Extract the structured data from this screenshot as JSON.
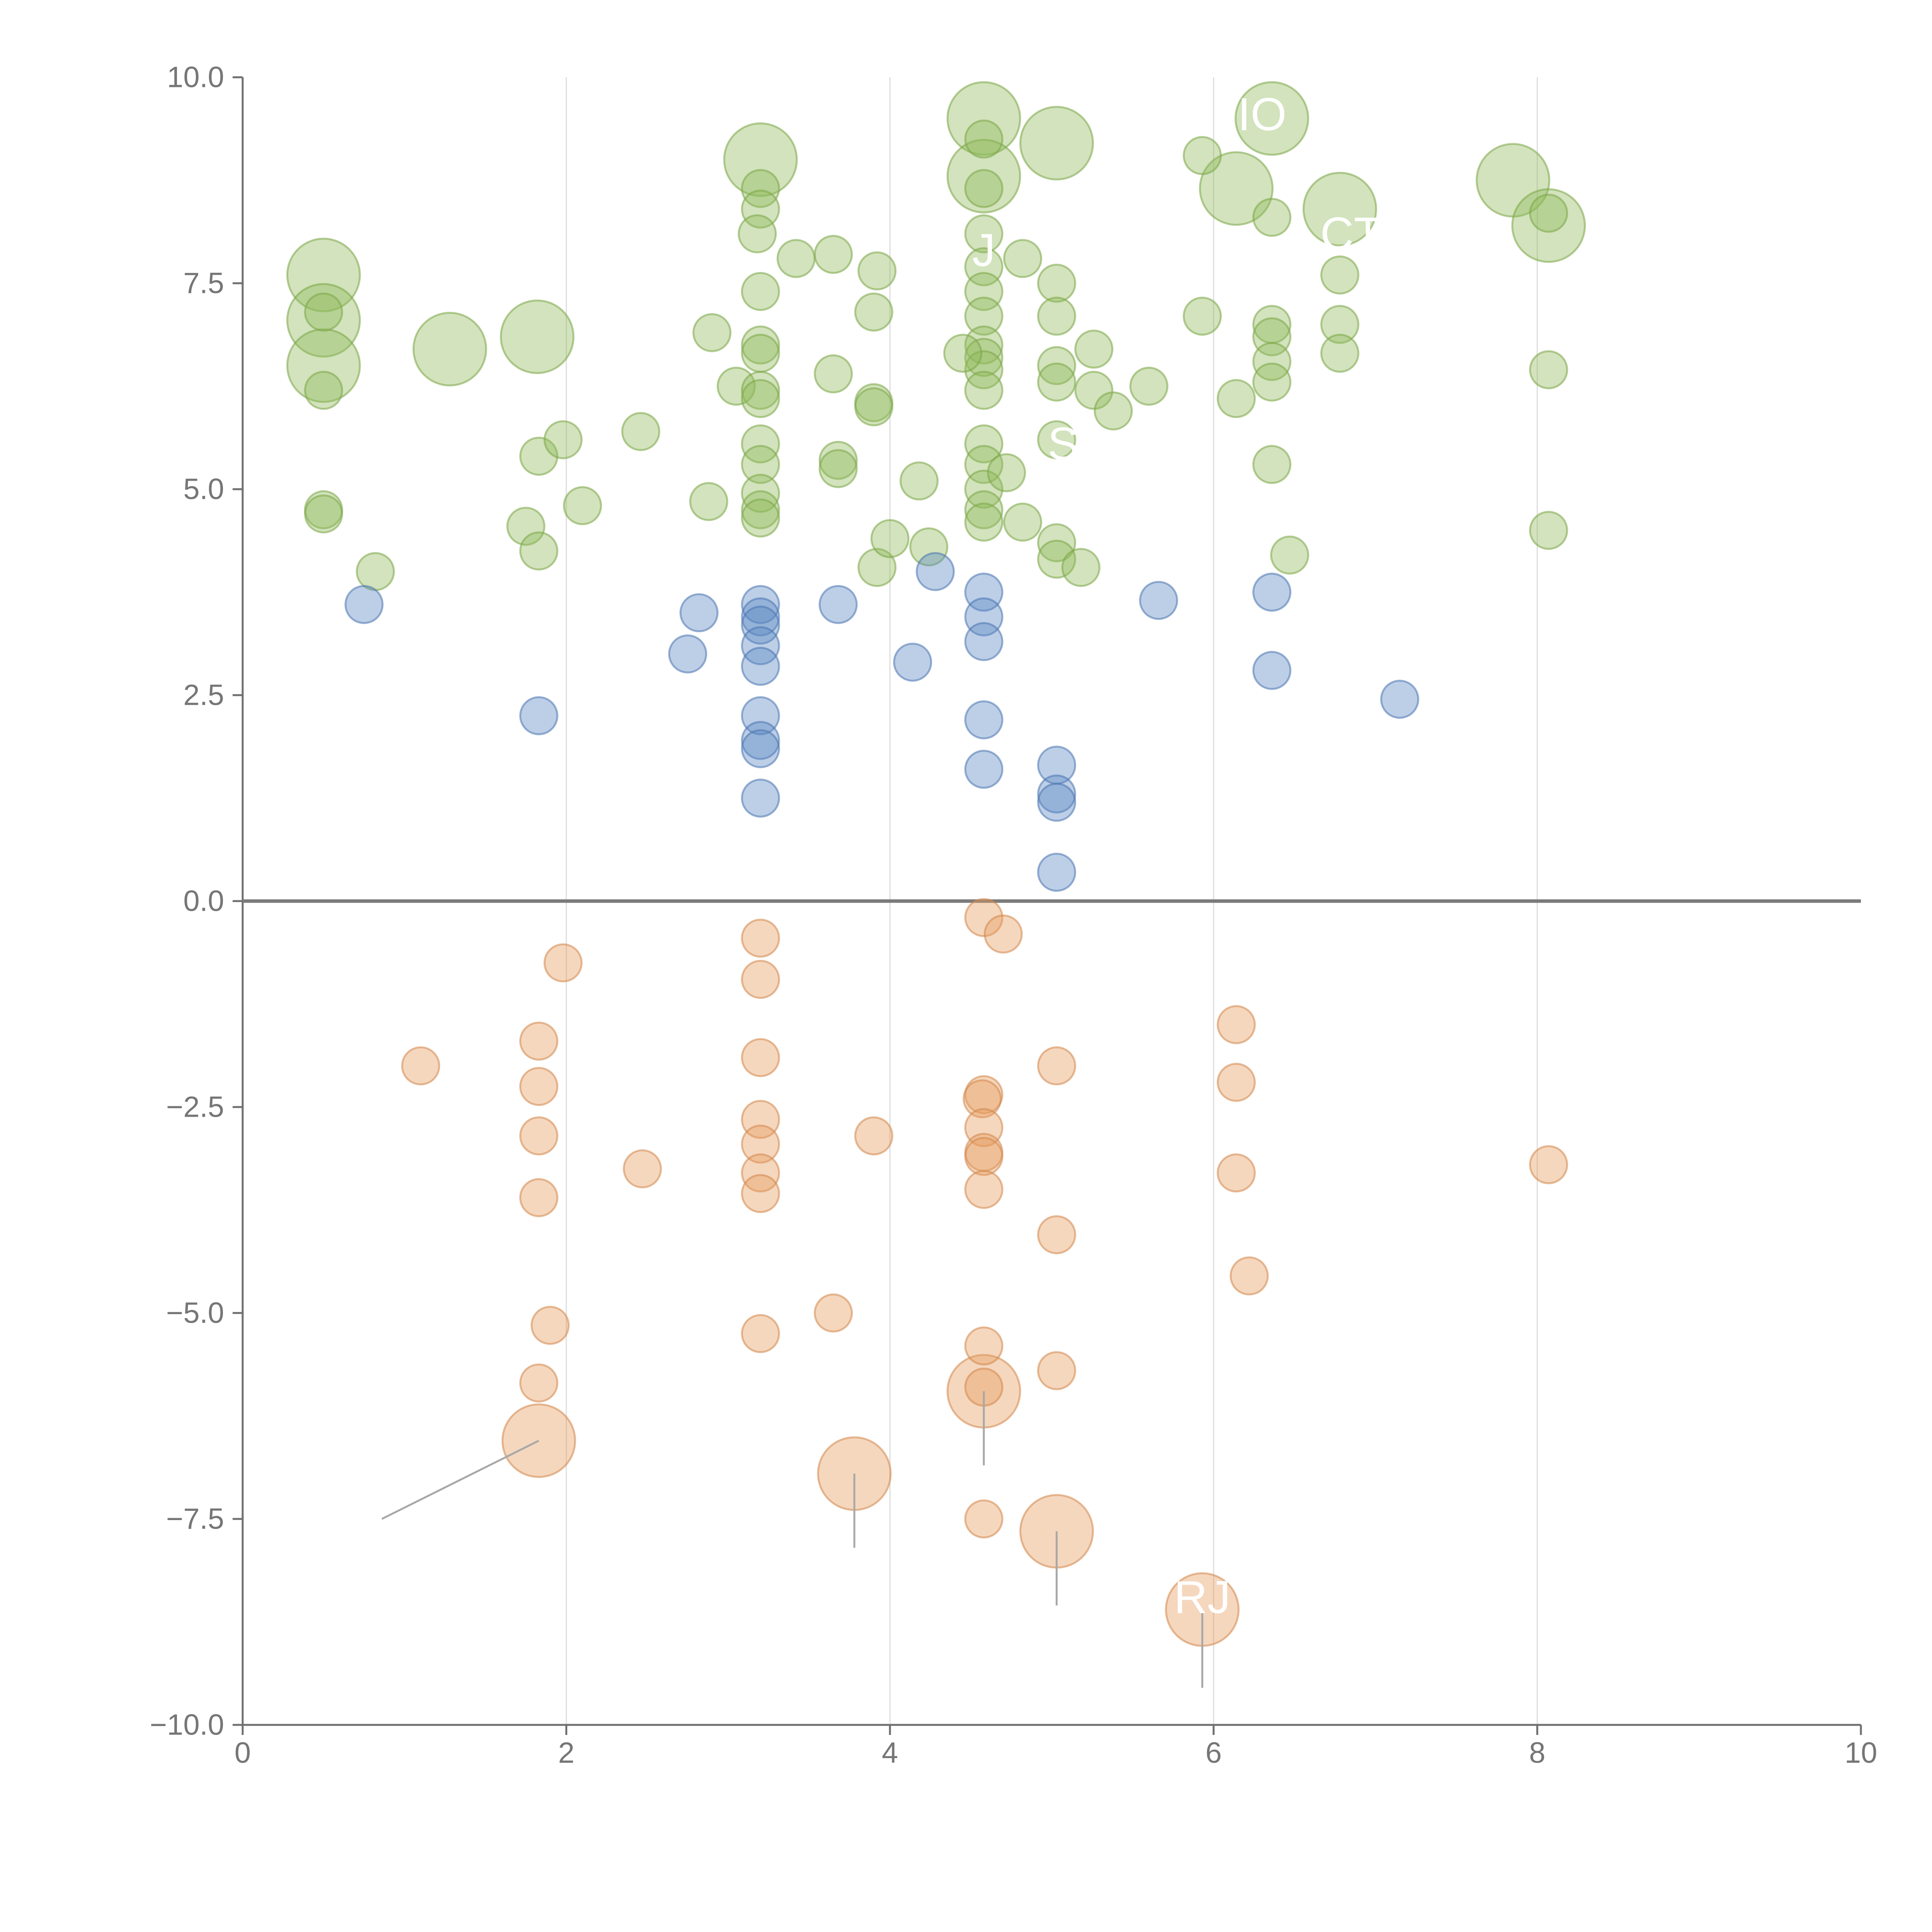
{
  "colors": {
    "positive": "#8fba5a",
    "positive_stroke": "#7aa646",
    "mid": "#5b87c4",
    "mid_stroke": "#4b74b0",
    "negative": "#e59a5c",
    "negative_stroke": "#d2864a",
    "axis": "#6f6f6f",
    "zero_line": "#7a7a7a",
    "grid": "#dddddd",
    "tick_text": "#767676",
    "label_text": "#ffffff",
    "leader": "#a8a8a8"
  },
  "chart_data": {
    "type": "scatter",
    "title": "",
    "xlabel": "",
    "ylabel": "",
    "xlim": [
      0,
      10
    ],
    "ylim": [
      -10,
      10
    ],
    "x_ticks": [
      0,
      2,
      4,
      6,
      8,
      10
    ],
    "x_tick_labels": [
      "0",
      "2",
      "4",
      "6",
      "8",
      "10"
    ],
    "y_ticks": [
      10,
      7.5,
      5,
      2.5,
      0,
      -2.5,
      -5,
      -7.5,
      -10
    ],
    "y_tick_labels": [
      "10.0",
      "7.5",
      "5.0",
      "2.5",
      "0.0",
      "−2.5",
      "−5.0",
      "−7.5",
      "−10.0"
    ],
    "vertical_grid_at": [
      2,
      4,
      6,
      8
    ],
    "zero_line": true,
    "series": [
      {
        "name": "positive",
        "color_key": "positive",
        "points": [
          {
            "x": 0.5,
            "y": 7.6,
            "s": 2
          },
          {
            "x": 0.5,
            "y": 7.05,
            "s": 2
          },
          {
            "x": 0.5,
            "y": 6.5,
            "s": 2
          },
          {
            "x": 0.5,
            "y": 7.15,
            "s": 1
          },
          {
            "x": 0.5,
            "y": 6.2,
            "s": 1
          },
          {
            "x": 0.5,
            "y": 4.75,
            "s": 1
          },
          {
            "x": 0.5,
            "y": 4.7,
            "s": 1
          },
          {
            "x": 0.82,
            "y": 4.0,
            "s": 1
          },
          {
            "x": 1.28,
            "y": 6.7,
            "s": 2
          },
          {
            "x": 1.82,
            "y": 6.85,
            "s": 2
          },
          {
            "x": 1.75,
            "y": 4.55,
            "s": 1
          },
          {
            "x": 1.83,
            "y": 5.4,
            "s": 1
          },
          {
            "x": 1.83,
            "y": 4.25,
            "s": 1
          },
          {
            "x": 1.98,
            "y": 5.6,
            "s": 1
          },
          {
            "x": 2.1,
            "y": 4.8,
            "s": 1
          },
          {
            "x": 2.46,
            "y": 5.7,
            "s": 1
          },
          {
            "x": 2.88,
            "y": 4.85,
            "s": 1
          },
          {
            "x": 2.9,
            "y": 6.9,
            "s": 1
          },
          {
            "x": 3.05,
            "y": 6.25,
            "s": 1
          },
          {
            "x": 3.2,
            "y": 9.0,
            "s": 2
          },
          {
            "x": 3.2,
            "y": 8.65,
            "s": 1
          },
          {
            "x": 3.2,
            "y": 8.4,
            "s": 1
          },
          {
            "x": 3.18,
            "y": 8.1,
            "s": 1
          },
          {
            "x": 3.2,
            "y": 7.4,
            "s": 1
          },
          {
            "x": 3.2,
            "y": 6.75,
            "s": 1
          },
          {
            "x": 3.2,
            "y": 6.65,
            "s": 1
          },
          {
            "x": 3.2,
            "y": 6.2,
            "s": 1
          },
          {
            "x": 3.2,
            "y": 6.1,
            "s": 1
          },
          {
            "x": 3.2,
            "y": 5.55,
            "s": 1
          },
          {
            "x": 3.2,
            "y": 5.3,
            "s": 1
          },
          {
            "x": 3.2,
            "y": 4.95,
            "s": 1
          },
          {
            "x": 3.2,
            "y": 4.75,
            "s": 1
          },
          {
            "x": 3.2,
            "y": 4.65,
            "s": 1
          },
          {
            "x": 3.42,
            "y": 7.8,
            "s": 1
          },
          {
            "x": 3.65,
            "y": 7.85,
            "s": 1
          },
          {
            "x": 3.65,
            "y": 6.4,
            "s": 1
          },
          {
            "x": 3.68,
            "y": 5.35,
            "s": 1
          },
          {
            "x": 3.68,
            "y": 5.25,
            "s": 1
          },
          {
            "x": 3.9,
            "y": 7.15,
            "s": 1
          },
          {
            "x": 3.9,
            "y": 6.05,
            "s": 1
          },
          {
            "x": 3.9,
            "y": 6.0,
            "s": 1
          },
          {
            "x": 3.92,
            "y": 4.05,
            "s": 1
          },
          {
            "x": 3.92,
            "y": 7.65,
            "s": 1
          },
          {
            "x": 4.0,
            "y": 4.4,
            "s": 1
          },
          {
            "x": 4.18,
            "y": 5.1,
            "s": 1
          },
          {
            "x": 4.24,
            "y": 4.3,
            "s": 1
          },
          {
            "x": 4.58,
            "y": 9.5,
            "s": 2
          },
          {
            "x": 4.58,
            "y": 8.8,
            "s": 2
          },
          {
            "x": 4.58,
            "y": 9.25,
            "s": 1
          },
          {
            "x": 4.58,
            "y": 8.65,
            "s": 1
          },
          {
            "x": 4.58,
            "y": 8.1,
            "s": 1
          },
          {
            "x": 4.58,
            "y": 7.7,
            "s": 1
          },
          {
            "x": 4.58,
            "y": 7.4,
            "s": 1
          },
          {
            "x": 4.58,
            "y": 7.1,
            "s": 1
          },
          {
            "x": 4.58,
            "y": 6.75,
            "s": 1
          },
          {
            "x": 4.58,
            "y": 6.6,
            "s": 1
          },
          {
            "x": 4.58,
            "y": 6.45,
            "s": 1
          },
          {
            "x": 4.58,
            "y": 6.2,
            "s": 1
          },
          {
            "x": 4.58,
            "y": 5.55,
            "s": 1
          },
          {
            "x": 4.58,
            "y": 5.3,
            "s": 1
          },
          {
            "x": 4.58,
            "y": 5.0,
            "s": 1
          },
          {
            "x": 4.58,
            "y": 4.75,
            "s": 1
          },
          {
            "x": 4.58,
            "y": 4.6,
            "s": 1
          },
          {
            "x": 4.45,
            "y": 6.65,
            "s": 1
          },
          {
            "x": 4.72,
            "y": 5.2,
            "s": 1
          },
          {
            "x": 4.82,
            "y": 7.8,
            "s": 1
          },
          {
            "x": 4.82,
            "y": 4.6,
            "s": 1
          },
          {
            "x": 5.03,
            "y": 9.2,
            "s": 2
          },
          {
            "x": 5.03,
            "y": 7.5,
            "s": 1
          },
          {
            "x": 5.03,
            "y": 7.1,
            "s": 1
          },
          {
            "x": 5.03,
            "y": 6.5,
            "s": 1
          },
          {
            "x": 5.03,
            "y": 6.3,
            "s": 1
          },
          {
            "x": 5.03,
            "y": 5.6,
            "s": 1
          },
          {
            "x": 5.03,
            "y": 4.35,
            "s": 1
          },
          {
            "x": 5.03,
            "y": 4.15,
            "s": 1
          },
          {
            "x": 5.18,
            "y": 4.05,
            "s": 1
          },
          {
            "x": 5.26,
            "y": 6.7,
            "s": 1
          },
          {
            "x": 5.26,
            "y": 6.2,
            "s": 1
          },
          {
            "x": 5.38,
            "y": 5.95,
            "s": 1
          },
          {
            "x": 5.6,
            "y": 6.25,
            "s": 1
          },
          {
            "x": 5.93,
            "y": 9.05,
            "s": 1
          },
          {
            "x": 5.93,
            "y": 7.1,
            "s": 1
          },
          {
            "x": 6.14,
            "y": 8.65,
            "s": 2
          },
          {
            "x": 6.14,
            "y": 6.1,
            "s": 1
          },
          {
            "x": 6.36,
            "y": 9.5,
            "s": 2
          },
          {
            "x": 6.36,
            "y": 8.3,
            "s": 1
          },
          {
            "x": 6.36,
            "y": 7.0,
            "s": 1
          },
          {
            "x": 6.36,
            "y": 6.85,
            "s": 1
          },
          {
            "x": 6.36,
            "y": 6.55,
            "s": 1
          },
          {
            "x": 6.36,
            "y": 6.3,
            "s": 1
          },
          {
            "x": 6.36,
            "y": 5.3,
            "s": 1
          },
          {
            "x": 6.47,
            "y": 4.2,
            "s": 1
          },
          {
            "x": 6.78,
            "y": 8.4,
            "s": 2
          },
          {
            "x": 6.78,
            "y": 7.6,
            "s": 1
          },
          {
            "x": 6.78,
            "y": 7.0,
            "s": 1
          },
          {
            "x": 6.78,
            "y": 6.65,
            "s": 1
          },
          {
            "x": 7.85,
            "y": 8.75,
            "s": 2
          },
          {
            "x": 8.07,
            "y": 8.2,
            "s": 2
          },
          {
            "x": 8.07,
            "y": 8.35,
            "s": 1
          },
          {
            "x": 8.07,
            "y": 6.45,
            "s": 1
          },
          {
            "x": 8.07,
            "y": 4.5,
            "s": 1
          }
        ]
      },
      {
        "name": "mid",
        "color_key": "mid",
        "points": [
          {
            "x": 0.75,
            "y": 3.6,
            "s": 1
          },
          {
            "x": 1.83,
            "y": 2.25,
            "s": 1
          },
          {
            "x": 2.75,
            "y": 3.0,
            "s": 1
          },
          {
            "x": 2.82,
            "y": 3.5,
            "s": 1
          },
          {
            "x": 3.2,
            "y": 3.6,
            "s": 1
          },
          {
            "x": 3.2,
            "y": 3.45,
            "s": 1
          },
          {
            "x": 3.2,
            "y": 3.35,
            "s": 1
          },
          {
            "x": 3.2,
            "y": 3.1,
            "s": 1
          },
          {
            "x": 3.2,
            "y": 2.85,
            "s": 1
          },
          {
            "x": 3.2,
            "y": 2.25,
            "s": 1
          },
          {
            "x": 3.2,
            "y": 1.95,
            "s": 1
          },
          {
            "x": 3.2,
            "y": 1.85,
            "s": 1
          },
          {
            "x": 3.2,
            "y": 1.25,
            "s": 1
          },
          {
            "x": 3.68,
            "y": 3.6,
            "s": 1
          },
          {
            "x": 4.14,
            "y": 2.9,
            "s": 1
          },
          {
            "x": 4.28,
            "y": 4.0,
            "s": 1
          },
          {
            "x": 4.58,
            "y": 3.75,
            "s": 1
          },
          {
            "x": 4.58,
            "y": 3.45,
            "s": 1
          },
          {
            "x": 4.58,
            "y": 3.15,
            "s": 1
          },
          {
            "x": 4.58,
            "y": 2.2,
            "s": 1
          },
          {
            "x": 4.58,
            "y": 1.6,
            "s": 1
          },
          {
            "x": 5.03,
            "y": 1.65,
            "s": 1
          },
          {
            "x": 5.03,
            "y": 1.3,
            "s": 1
          },
          {
            "x": 5.03,
            "y": 1.2,
            "s": 1
          },
          {
            "x": 5.03,
            "y": 0.35,
            "s": 1
          },
          {
            "x": 5.66,
            "y": 3.65,
            "s": 1
          },
          {
            "x": 6.36,
            "y": 3.75,
            "s": 1
          },
          {
            "x": 6.36,
            "y": 2.8,
            "s": 1
          },
          {
            "x": 7.15,
            "y": 2.45,
            "s": 1
          }
        ]
      },
      {
        "name": "negative",
        "color_key": "negative",
        "points": [
          {
            "x": 1.1,
            "y": -2.0,
            "s": 1
          },
          {
            "x": 1.83,
            "y": -1.7,
            "s": 1
          },
          {
            "x": 1.83,
            "y": -2.25,
            "s": 1
          },
          {
            "x": 1.83,
            "y": -2.85,
            "s": 1
          },
          {
            "x": 1.83,
            "y": -3.6,
            "s": 1
          },
          {
            "x": 1.9,
            "y": -5.15,
            "s": 1
          },
          {
            "x": 1.83,
            "y": -5.85,
            "s": 1
          },
          {
            "x": 1.83,
            "y": -6.55,
            "s": 2
          },
          {
            "x": 1.98,
            "y": -0.75,
            "s": 1
          },
          {
            "x": 2.47,
            "y": -3.25,
            "s": 1
          },
          {
            "x": 3.2,
            "y": -0.45,
            "s": 1
          },
          {
            "x": 3.2,
            "y": -0.95,
            "s": 1
          },
          {
            "x": 3.2,
            "y": -1.9,
            "s": 1
          },
          {
            "x": 3.2,
            "y": -2.65,
            "s": 1
          },
          {
            "x": 3.2,
            "y": -2.95,
            "s": 1
          },
          {
            "x": 3.2,
            "y": -3.3,
            "s": 1
          },
          {
            "x": 3.2,
            "y": -3.55,
            "s": 1
          },
          {
            "x": 3.2,
            "y": -5.25,
            "s": 1
          },
          {
            "x": 3.65,
            "y": -5.0,
            "s": 1
          },
          {
            "x": 3.78,
            "y": -6.95,
            "s": 2
          },
          {
            "x": 3.9,
            "y": -2.85,
            "s": 1
          },
          {
            "x": 4.58,
            "y": -0.2,
            "s": 1
          },
          {
            "x": 4.7,
            "y": -0.4,
            "s": 1
          },
          {
            "x": 4.58,
            "y": -2.35,
            "s": 1
          },
          {
            "x": 4.57,
            "y": -2.4,
            "s": 1
          },
          {
            "x": 4.58,
            "y": -2.75,
            "s": 1
          },
          {
            "x": 4.58,
            "y": -3.05,
            "s": 1
          },
          {
            "x": 4.58,
            "y": -3.1,
            "s": 1
          },
          {
            "x": 4.58,
            "y": -3.5,
            "s": 1
          },
          {
            "x": 4.58,
            "y": -5.4,
            "s": 1
          },
          {
            "x": 4.58,
            "y": -5.9,
            "s": 1
          },
          {
            "x": 4.58,
            "y": -5.95,
            "s": 2
          },
          {
            "x": 4.58,
            "y": -7.5,
            "s": 1
          },
          {
            "x": 5.03,
            "y": -2.0,
            "s": 1
          },
          {
            "x": 5.03,
            "y": -4.05,
            "s": 1
          },
          {
            "x": 5.03,
            "y": -5.7,
            "s": 1
          },
          {
            "x": 5.03,
            "y": -7.65,
            "s": 2
          },
          {
            "x": 5.93,
            "y": -8.6,
            "s": 2
          },
          {
            "x": 6.14,
            "y": -1.5,
            "s": 1
          },
          {
            "x": 6.14,
            "y": -2.2,
            "s": 1
          },
          {
            "x": 6.14,
            "y": -3.3,
            "s": 1
          },
          {
            "x": 6.22,
            "y": -4.55,
            "s": 1
          },
          {
            "x": 8.07,
            "y": -3.2,
            "s": 1
          }
        ]
      }
    ],
    "point_labels": [
      {
        "text": "IO",
        "x": 6.36,
        "y": 9.5,
        "lx": 6.3,
        "ly": 9.55,
        "dx": -0.04,
        "dy": 0.05
      },
      {
        "text": "J",
        "x": 4.58,
        "y": 7.85,
        "lx": 4.58,
        "ly": 7.9,
        "dx": 0.0,
        "dy": 0.0
      },
      {
        "text": "CT",
        "x": 6.9,
        "y": 8.1,
        "lx": 6.85,
        "ly": 8.1,
        "dx": 0.0,
        "dy": 0.0
      },
      {
        "text": "S",
        "x": 5.07,
        "y": 5.6,
        "lx": 5.07,
        "ly": 5.55,
        "dx": 0.0,
        "dy": 0.0
      },
      {
        "text": "RJ",
        "x": 5.93,
        "y": -8.55,
        "lx": 5.93,
        "ly": -8.45,
        "dx": 0.0,
        "dy": 0.0
      }
    ],
    "leader_lines": [
      {
        "x1": 1.83,
        "y1": -6.55,
        "x2": 0.86,
        "y2": -7.5
      },
      {
        "x1": 3.78,
        "y1": -6.95,
        "x2": 3.78,
        "y2": -7.85
      },
      {
        "x1": 4.58,
        "y1": -5.95,
        "x2": 4.58,
        "y2": -6.85
      },
      {
        "x1": 5.03,
        "y1": -7.65,
        "x2": 5.03,
        "y2": -8.55
      },
      {
        "x1": 5.93,
        "y1": -8.6,
        "x2": 5.93,
        "y2": -9.55
      }
    ]
  }
}
